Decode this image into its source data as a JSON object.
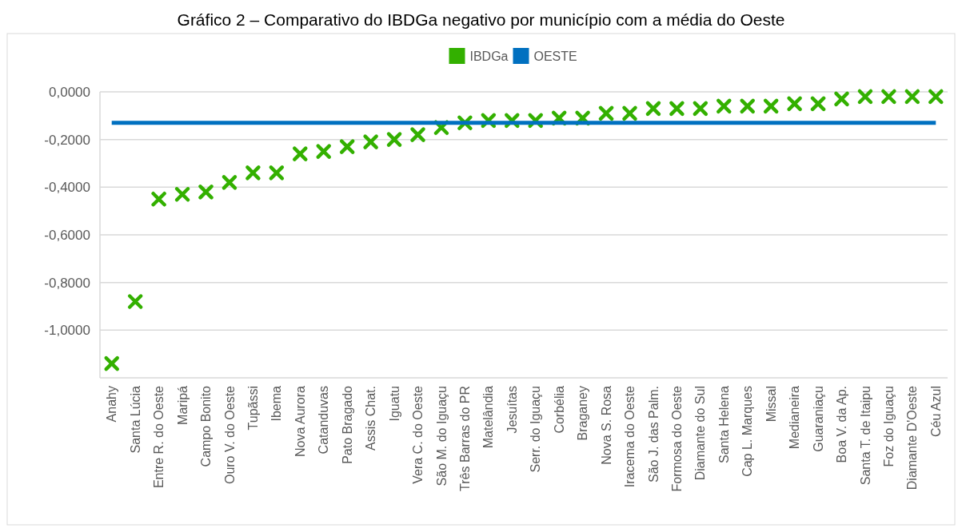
{
  "chart_data": {
    "type": "scatter",
    "title": "Gráfico 2 – Comparativo do IBDGa negativo por município com a média do Oeste",
    "categories": [
      "Anahy",
      "Santa Lúcia",
      "Entre R. do Oeste",
      "Maripá",
      "Campo Bonito",
      "Ouro V. do Oeste",
      "Tupãssi",
      "Ibema",
      "Nova Aurora",
      "Catanduvas",
      "Pato Bragado",
      "Assis Chat.",
      "Iguatu",
      "Vera C. do Oeste",
      "São M. do Iguaçu",
      "Três Barras do PR",
      "Matelândia",
      "Jesuítas",
      "Serr. do Iguaçu",
      "Corbélia",
      "Braganey",
      "Nova S. Rosa",
      "Iracema do Oeste",
      "São J. das Palm.",
      "Formosa do Oeste",
      "Diamante do Sul",
      "Santa Helena",
      "Cap L. Marques",
      "Missal",
      "Medianeira",
      "Guaraniaçu",
      "Boa V. da Ap.",
      "Santa T. de Itaipu",
      "Foz do Iguaçu",
      "Diamante D'Oeste",
      "Céu Azul"
    ],
    "series": [
      {
        "name": "IBDGa",
        "marker": "cross",
        "color": "#33b000",
        "values": [
          -1.14,
          -0.88,
          -0.45,
          -0.43,
          -0.42,
          -0.38,
          -0.34,
          -0.34,
          -0.26,
          -0.25,
          -0.23,
          -0.21,
          -0.2,
          -0.18,
          -0.15,
          -0.13,
          -0.12,
          -0.12,
          -0.12,
          -0.11,
          -0.11,
          -0.09,
          -0.09,
          -0.07,
          -0.07,
          -0.07,
          -0.06,
          -0.06,
          -0.06,
          -0.05,
          -0.05,
          -0.03,
          -0.02,
          -0.02,
          -0.02,
          -0.02
        ]
      },
      {
        "name": "OESTE",
        "type": "line",
        "marker": "none",
        "color": "#0070c0",
        "values": [
          -0.13,
          -0.13,
          -0.13,
          -0.13,
          -0.13,
          -0.13,
          -0.13,
          -0.13,
          -0.13,
          -0.13,
          -0.13,
          -0.13,
          -0.13,
          -0.13,
          -0.13,
          -0.13,
          -0.13,
          -0.13,
          -0.13,
          -0.13,
          -0.13,
          -0.13,
          -0.13,
          -0.13,
          -0.13,
          -0.13,
          -0.13,
          -0.13,
          -0.13,
          -0.13,
          -0.13,
          -0.13,
          -0.13,
          -0.13,
          -0.13,
          -0.13
        ]
      }
    ],
    "ylim": [
      -1.2,
      0
    ],
    "yticks": [
      {
        "value": 0,
        "label": "0,0000"
      },
      {
        "value": -0.2,
        "label": "-0,2000"
      },
      {
        "value": -0.4,
        "label": "-0,4000"
      },
      {
        "value": -0.6,
        "label": "-0,6000"
      },
      {
        "value": -0.8,
        "label": "-0,8000"
      },
      {
        "value": -1,
        "label": "-1,0000"
      }
    ],
    "grid": "y",
    "legend": "top"
  }
}
